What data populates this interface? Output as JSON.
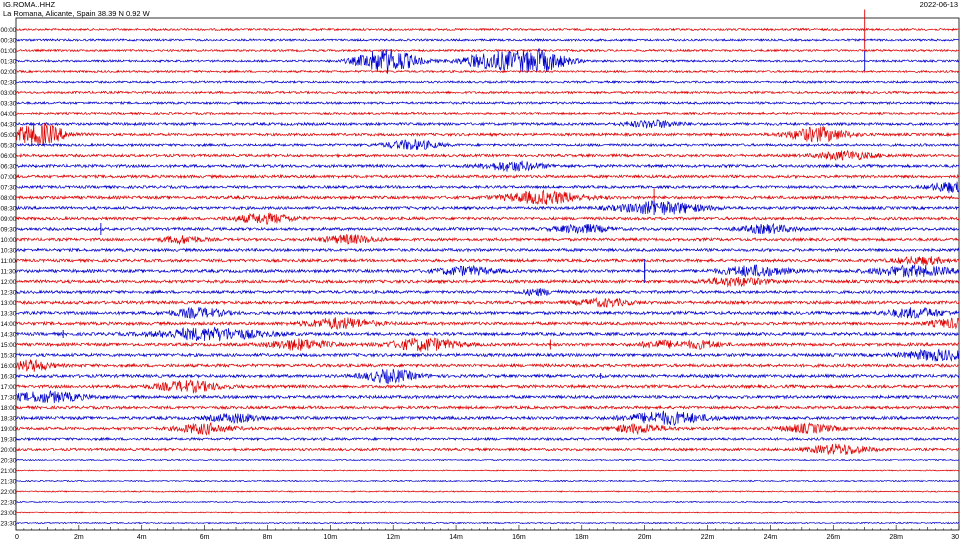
{
  "header": {
    "station": "IG.ROMA..HHZ",
    "location": "La Romana, Alicante, Spain  38.39 N 0.92 W",
    "date": "2022-06-13"
  },
  "colors": {
    "red": "#dd0000",
    "blue": "#0000cc",
    "axis": "#000000"
  },
  "chart_data": {
    "type": "line",
    "title": "IG.ROMA..HHZ",
    "subtitle": "La Romana, Alicante, Spain  38.39 N 0.92 W",
    "xlabel": "",
    "ylabel": "",
    "x_ticks": [
      "0",
      "2m",
      "4m",
      "6m",
      "8m",
      "10m",
      "12m",
      "14m",
      "16m",
      "18m",
      "20m",
      "22m",
      "24m",
      "26m",
      "28m",
      "30"
    ],
    "xlim": [
      0,
      30
    ],
    "row_labels": [
      "00:00",
      "00:30",
      "01:00",
      "01:30",
      "02:00",
      "02:30",
      "03:00",
      "03:30",
      "04:00",
      "04:30",
      "05:00",
      "05:30",
      "06:00",
      "06:30",
      "07:00",
      "07:30",
      "08:00",
      "08:30",
      "09:00",
      "09:30",
      "10:00",
      "10:30",
      "11:00",
      "11:30",
      "12:00",
      "12:30",
      "13:00",
      "13:30",
      "14:00",
      "14:30",
      "15:00",
      "15:30",
      "16:00",
      "16:30",
      "17:00",
      "17:30",
      "18:00",
      "18:30",
      "19:00",
      "19:30",
      "20:00",
      "20:30",
      "21:00",
      "21:30",
      "22:00",
      "22:30",
      "23:00",
      "23:30"
    ],
    "noise": [
      1,
      1,
      1,
      1,
      1,
      1,
      1.1,
      1.1,
      1,
      1.3,
      1.3,
      1.2,
      1.3,
      1.4,
      1.4,
      1.3,
      1.5,
      1.4,
      1.4,
      1.4,
      1.4,
      1.4,
      1.4,
      1.5,
      1.5,
      1.4,
      1.5,
      1.5,
      1.5,
      1.5,
      1.5,
      1.5,
      1.5,
      1.5,
      1.5,
      1.5,
      1.4,
      1.5,
      1.4,
      1.2,
      1.2,
      0.6,
      0.5,
      0.6,
      0.6,
      0.6,
      0.5,
      0.6
    ],
    "events": [
      [],
      [],
      [],
      [
        [
          11.8,
          0.9,
          12
        ],
        [
          15.1,
          0.9,
          8
        ],
        [
          16.6,
          0.9,
          11
        ]
      ],
      [],
      [],
      [],
      [],
      [],
      [
        [
          20.3,
          0.8,
          3.5
        ]
      ],
      [
        [
          0.7,
          0.8,
          11
        ],
        [
          25.5,
          0.9,
          7
        ]
      ],
      [
        [
          12.6,
          0.8,
          4.5
        ]
      ],
      [
        [
          26.4,
          0.9,
          4
        ]
      ],
      [
        [
          15.8,
          0.9,
          4.5
        ]
      ],
      [],
      [
        [
          29.7,
          0.6,
          5
        ]
      ],
      [
        [
          16.8,
          1.2,
          6
        ]
      ],
      [
        [
          20.5,
          1.3,
          6
        ]
      ],
      [
        [
          7.9,
          0.9,
          4.5
        ]
      ],
      [
        [
          18.0,
          0.8,
          4
        ],
        [
          23.9,
          0.8,
          4
        ]
      ],
      [
        [
          5.3,
          0.6,
          3.5
        ],
        [
          10.6,
          0.8,
          4
        ]
      ],
      [],
      [
        [
          28.8,
          0.8,
          3.5
        ]
      ],
      [
        [
          14.3,
          0.9,
          4
        ],
        [
          23.5,
          1.0,
          5
        ],
        [
          28.5,
          1.2,
          5
        ]
      ],
      [
        [
          22.9,
          0.9,
          4
        ]
      ],
      [
        [
          16.6,
          0.5,
          3
        ]
      ],
      [
        [
          18.7,
          0.8,
          3.5
        ]
      ],
      [
        [
          5.8,
          0.8,
          4.5
        ],
        [
          28.6,
          0.9,
          4.5
        ]
      ],
      [
        [
          10.3,
          1.0,
          5
        ],
        [
          29.8,
          0.7,
          4
        ]
      ],
      [
        [
          6.2,
          1.6,
          6
        ]
      ],
      [
        [
          9.0,
          0.9,
          5
        ],
        [
          13.0,
          1.0,
          6
        ],
        [
          20.5,
          0.6,
          3.5
        ],
        [
          21.8,
          0.6,
          3.5
        ]
      ],
      [
        [
          29.3,
          1.0,
          5
        ]
      ],
      [
        [
          0.5,
          0.6,
          5
        ]
      ],
      [
        [
          11.9,
          0.8,
          6
        ]
      ],
      [
        [
          5.5,
          1.0,
          5
        ]
      ],
      [
        [
          1.0,
          1.1,
          5
        ]
      ],
      [],
      [
        [
          7.0,
          0.8,
          4
        ],
        [
          20.7,
          1.2,
          6
        ]
      ],
      [
        [
          6.0,
          0.8,
          5
        ],
        [
          19.8,
          0.8,
          4
        ],
        [
          25.2,
          0.8,
          4
        ]
      ],
      [],
      [
        [
          26.2,
          0.9,
          5
        ]
      ],
      [],
      [],
      [],
      [],
      [],
      [],
      []
    ],
    "spikes": [
      [
        0,
        27.0,
        20
      ],
      [
        3,
        27.0,
        10
      ],
      [
        16,
        20.3,
        9
      ],
      [
        17,
        20.3,
        7
      ],
      [
        19,
        2.7,
        6
      ],
      [
        23,
        20.0,
        12
      ],
      [
        23,
        20.0,
        8
      ],
      [
        29,
        1.5,
        4
      ],
      [
        30,
        17.0,
        5
      ],
      [
        33,
        18.6,
        3
      ]
    ]
  }
}
